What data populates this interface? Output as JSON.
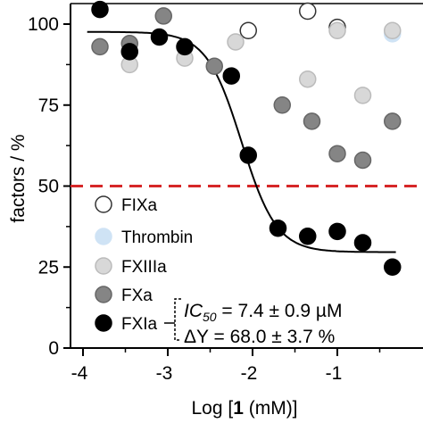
{
  "chart_data": {
    "type": "scatter",
    "xlabel_prefix": "Log [",
    "xlabel_bold": "1",
    "xlabel_suffix": " (mM)]",
    "ylabel": "factors / %",
    "xlim": [
      -4,
      -0.3
    ],
    "ylim": [
      0,
      105
    ],
    "xticks": [
      -4,
      -3,
      -2,
      -1
    ],
    "yticks": [
      0,
      25,
      50,
      75,
      100
    ],
    "reference_line": {
      "y": 50,
      "color": "#d62728",
      "style": "dashed"
    },
    "legend_position": "bottom-left",
    "series": [
      {
        "name": "FIXa",
        "fill": "#ffffff",
        "stroke": "#333333",
        "x": [
          -1.35,
          -1.0,
          -2.05
        ],
        "y": [
          104,
          99,
          98
        ]
      },
      {
        "name": "Thrombin",
        "fill": "#cfe3f5",
        "stroke": "#cfe3f5",
        "x": [
          -0.35
        ],
        "y": [
          97
        ]
      },
      {
        "name": "FXIIIa",
        "fill": "#d8d8d8",
        "stroke": "#bbbbbb",
        "x": [
          -3.45,
          -2.8,
          -2.2,
          -1.35,
          -0.7,
          -0.35,
          -1.0
        ],
        "y": [
          87.5,
          89.5,
          94.5,
          83,
          78,
          98,
          98
        ]
      },
      {
        "name": "FXa",
        "fill": "#858585",
        "stroke": "#666666",
        "x": [
          -3.8,
          -3.45,
          -3.05,
          -2.45,
          -1.65,
          -1.3,
          -1.0,
          -0.7,
          -0.35
        ],
        "y": [
          93,
          94,
          102.5,
          87,
          75,
          70,
          60,
          58,
          70
        ]
      },
      {
        "name": "FXIa",
        "fill": "#000000",
        "stroke": "#000000",
        "x": [
          -3.8,
          -3.45,
          -3.1,
          -2.8,
          -2.25,
          -2.05,
          -1.7,
          -1.35,
          -1.0,
          -0.7,
          -0.35
        ],
        "y": [
          104.5,
          91.5,
          96,
          93,
          84,
          59.5,
          37,
          34.5,
          36,
          32.5,
          25
        ]
      }
    ],
    "fit_curve": {
      "series": "FXIa",
      "top": 97.6,
      "bottom": 29.6,
      "log_ic50": -2.13,
      "hill": 2.1
    },
    "annotation": {
      "ic50_name": "IC",
      "ic50_sub": "50",
      "ic50_value": " = 7.4 ± 0.9 µM",
      "dy_label": "ΔY = 68.0 ± 3.7 %"
    }
  }
}
